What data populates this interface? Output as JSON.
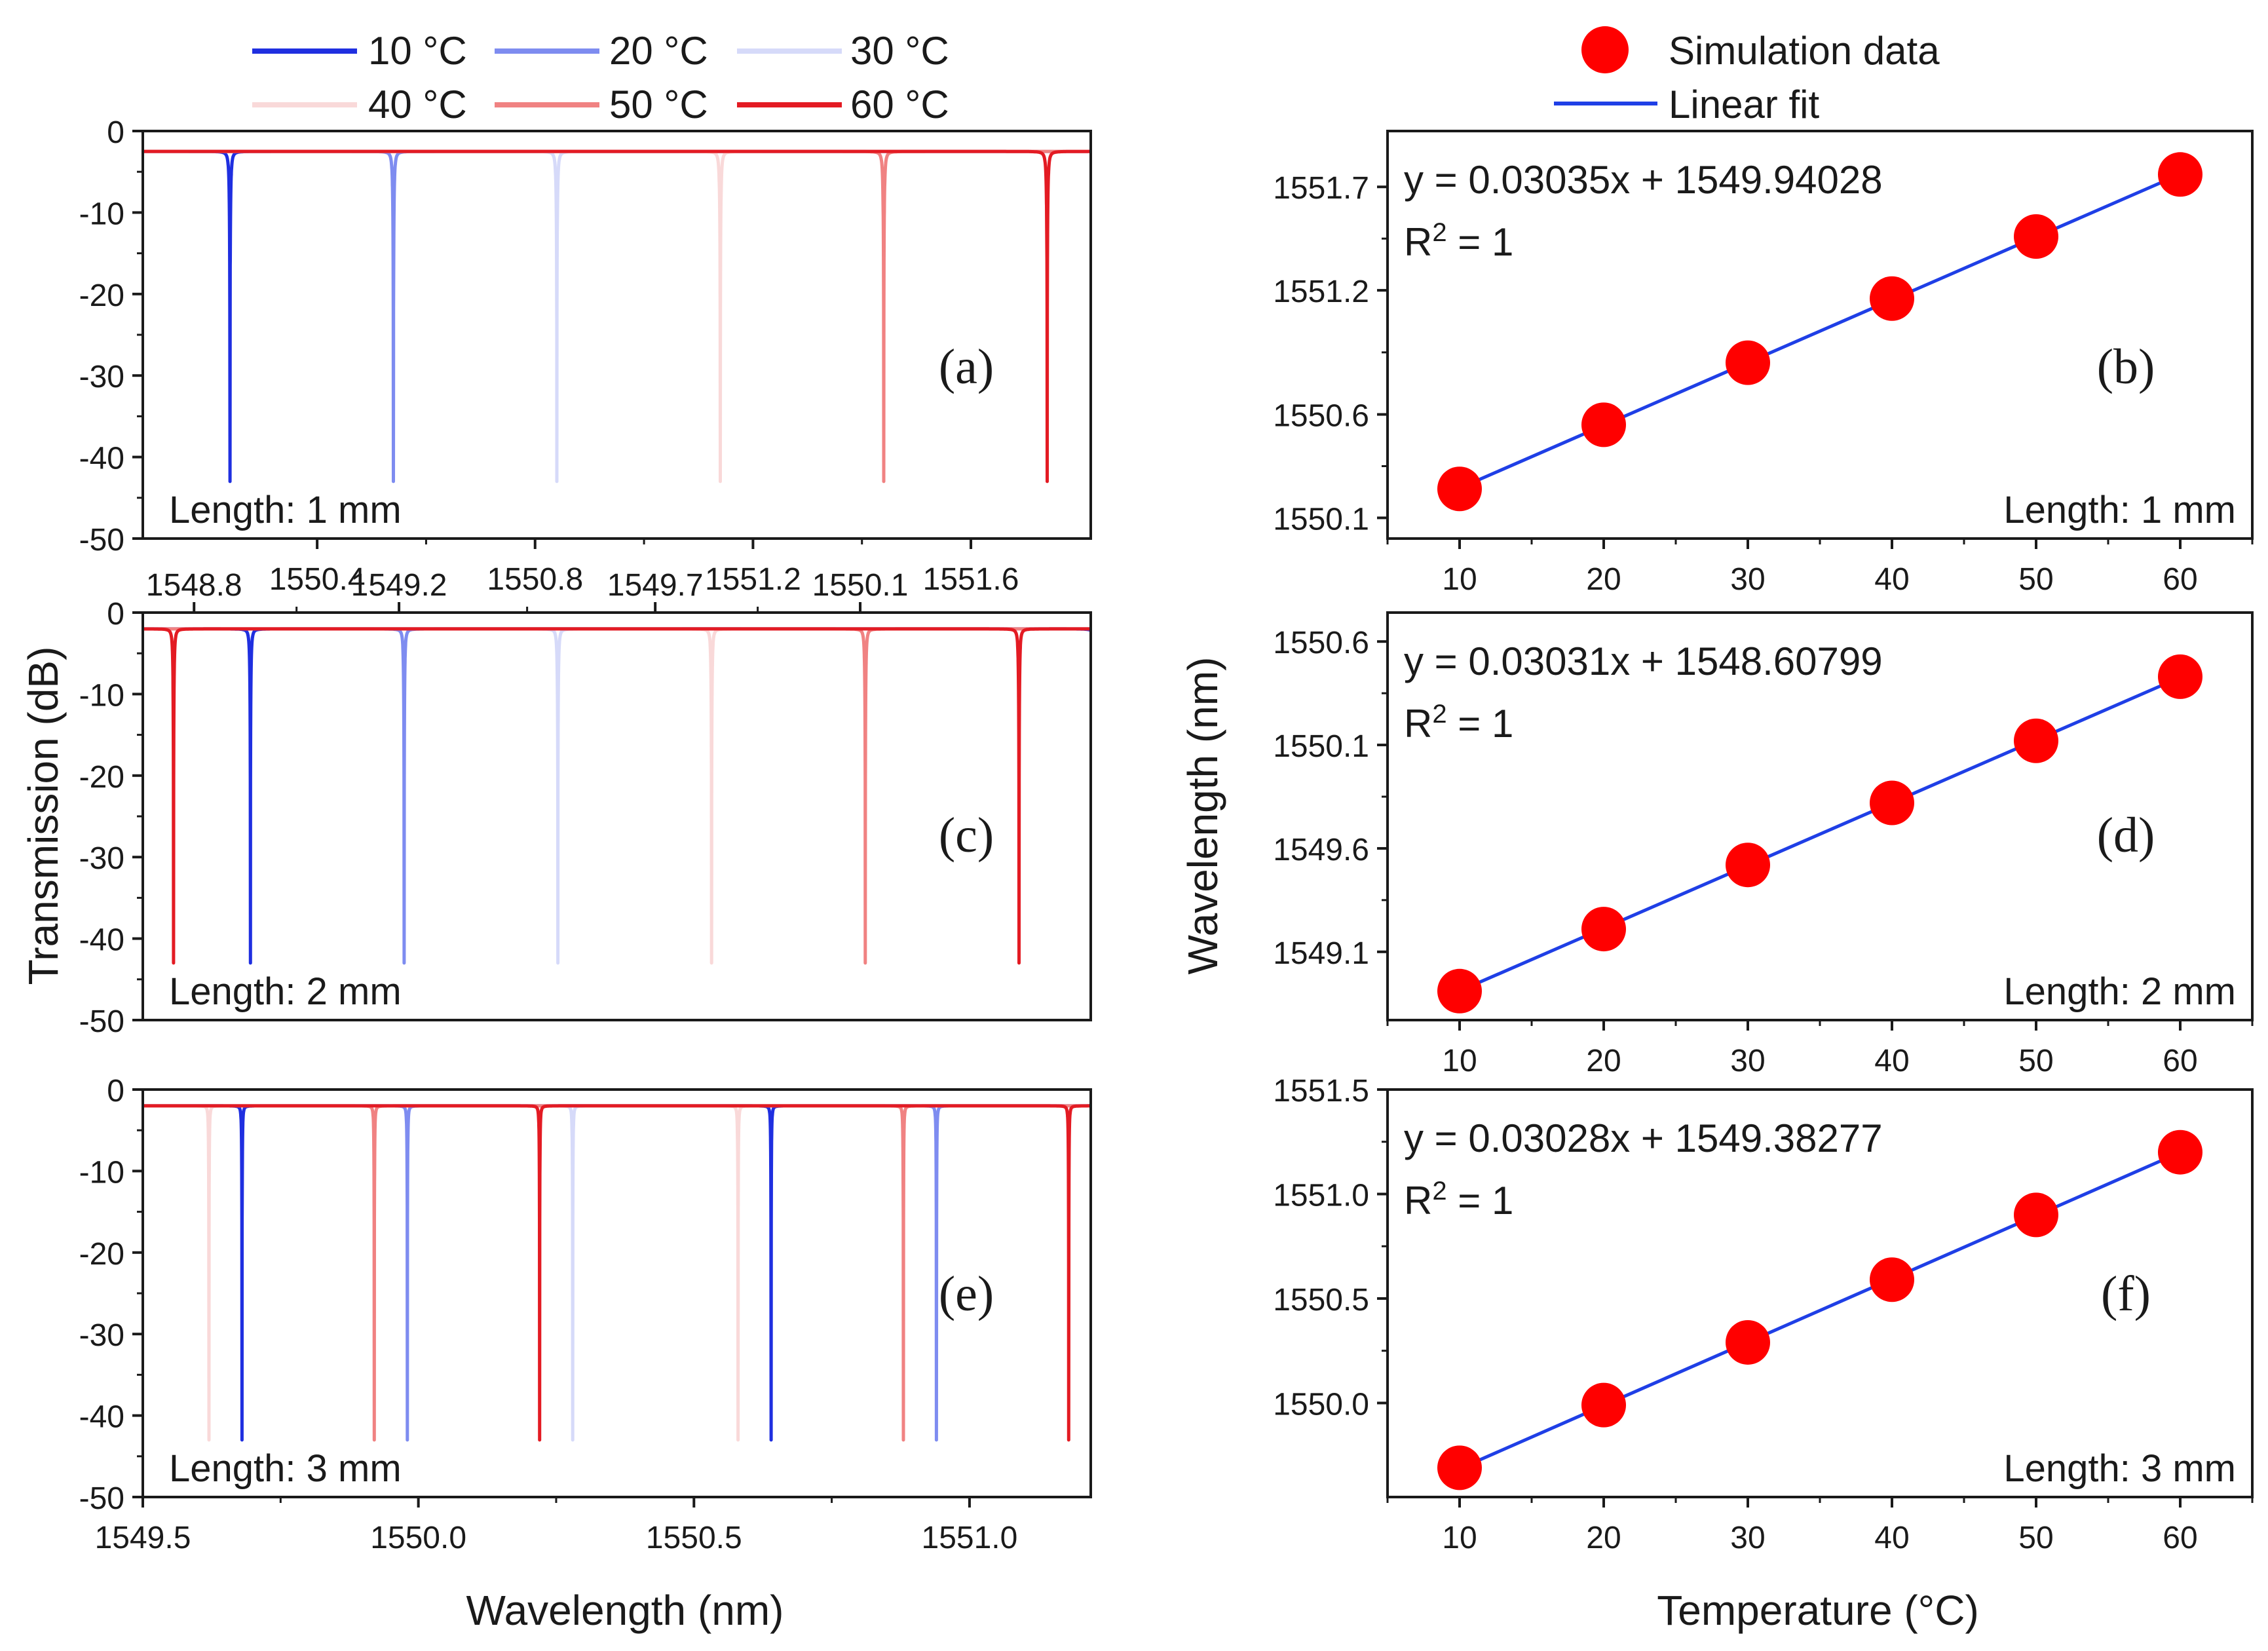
{
  "colors": {
    "c10": "#1f2fe0",
    "c20": "#7e8cf0",
    "c30": "#d6daf9",
    "c40": "#f9d9d9",
    "c50": "#f08282",
    "c60": "#e31b23",
    "marker": "#ff0000",
    "fit": "#1f3fe6",
    "axis": "#1a1a1a"
  },
  "legend_left": {
    "entries": [
      {
        "label": "10 °C",
        "color_key": "c10"
      },
      {
        "label": "20 °C",
        "color_key": "c20"
      },
      {
        "label": "30 °C",
        "color_key": "c30"
      },
      {
        "label": "40 °C",
        "color_key": "c40"
      },
      {
        "label": "50 °C",
        "color_key": "c50"
      },
      {
        "label": "60 °C",
        "color_key": "c60"
      }
    ]
  },
  "legend_right": {
    "marker_label": "Simulation data",
    "line_label": "Linear fit"
  },
  "left_ylabel": "Transmission (dB)",
  "left_xlabel": "Wavelength (nm)",
  "right_ylabel": "Wavelength (nm)",
  "right_xlabel": "Temperature (°C)",
  "chart_data": [
    {
      "panel": "(a)",
      "type": "line",
      "length_label": "Length: 1 mm",
      "xlim": [
        1550.08,
        1551.82
      ],
      "ylim": [
        -50,
        0
      ],
      "xticks": [
        1550.4,
        1550.8,
        1551.2,
        1551.6
      ],
      "xtick_labels": [
        "1550.4",
        "1550.8",
        "1551.2",
        "1551.6"
      ],
      "yticks": [
        0,
        -10,
        -20,
        -30,
        -40,
        -50
      ],
      "ytick_labels": [
        "0",
        "-10",
        "-20",
        "-30",
        "-40",
        "-50"
      ],
      "fsr": 1.8,
      "base_db": -2.5,
      "min_db": -43,
      "series": [
        {
          "name": "10 °C",
          "resonance": 1550.24
        },
        {
          "name": "20 °C",
          "resonance": 1550.54
        },
        {
          "name": "30 °C",
          "resonance": 1550.84
        },
        {
          "name": "40 °C",
          "resonance": 1551.14
        },
        {
          "name": "50 °C",
          "resonance": 1551.44
        },
        {
          "name": "60 °C",
          "resonance": 1551.74
        }
      ]
    },
    {
      "panel": "(c)",
      "type": "line",
      "length_label": "Length: 2 mm",
      "xlim": [
        1548.7,
        1550.55
      ],
      "ylim": [
        -50,
        0
      ],
      "xticks": [
        1548.8,
        1549.2,
        1549.7,
        1550.1
      ],
      "xtick_labels": [
        "1548.8",
        "1549.2",
        "1549.7",
        "1550.1"
      ],
      "yticks": [
        0,
        -10,
        -20,
        -30,
        -40,
        -50
      ],
      "ytick_labels": [
        "0",
        "-10",
        "-20",
        "-30",
        "-40",
        "-50"
      ],
      "fsr": 1.65,
      "base_db": -2,
      "min_db": -43,
      "series": [
        {
          "name": "10 °C",
          "resonance": 1548.91
        },
        {
          "name": "20 °C",
          "resonance": 1549.21
        },
        {
          "name": "30 °C",
          "resonance": 1549.51
        },
        {
          "name": "40 °C",
          "resonance": 1549.81
        },
        {
          "name": "50 °C",
          "resonance": 1550.11
        },
        {
          "name": "60 °C",
          "resonance": 1550.41
        }
      ]
    },
    {
      "panel": "(e)",
      "type": "line",
      "length_label": "Length: 3 mm",
      "xlim": [
        1549.5,
        1551.22
      ],
      "ylim": [
        -50,
        0
      ],
      "xticks": [
        1549.5,
        1550.0,
        1550.5,
        1551.0
      ],
      "xtick_labels": [
        "1549.5",
        "1550.0",
        "1550.5",
        "1551.0"
      ],
      "yticks": [
        0,
        -10,
        -20,
        -30,
        -40,
        -50
      ],
      "ytick_labels": [
        "0",
        "-10",
        "-20",
        "-30",
        "-40",
        "-50"
      ],
      "fsr": 0.96,
      "base_db": -2,
      "min_db": -43,
      "series": [
        {
          "name": "10 °C",
          "resonance": 1549.68
        },
        {
          "name": "20 °C",
          "resonance": 1549.98
        },
        {
          "name": "30 °C",
          "resonance": 1550.28
        },
        {
          "name": "40 °C",
          "resonance": 1550.58
        },
        {
          "name": "50 °C",
          "resonance": 1550.88
        },
        {
          "name": "60 °C",
          "resonance": 1551.18
        }
      ]
    },
    {
      "panel": "(b)",
      "type": "scatter",
      "length_label": "Length: 1 mm",
      "equation": "y = 0.03035x + 1549.94028",
      "r2_main": "R",
      "r2_sup": "2",
      "r2_rest": " = 1",
      "slope": 0.03035,
      "intercept": 1549.94028,
      "x": [
        10,
        20,
        30,
        40,
        50,
        60
      ],
      "y": [
        1550.24,
        1550.55,
        1550.85,
        1551.16,
        1551.46,
        1551.76
      ],
      "xlim": [
        5,
        65
      ],
      "ylim": [
        1550.0,
        1551.97
      ],
      "xticks": [
        10,
        20,
        30,
        40,
        50,
        60
      ],
      "xtick_labels": [
        "10",
        "20",
        "30",
        "40",
        "50",
        "60"
      ],
      "yticks": [
        1550.1,
        1550.6,
        1551.2,
        1551.7
      ],
      "ytick_labels": [
        "1550.1",
        "1550.6",
        "1551.2",
        "1551.7"
      ]
    },
    {
      "panel": "(d)",
      "type": "scatter",
      "length_label": "Length: 2 mm",
      "equation": "y = 0.03031x + 1548.60799",
      "r2_main": "R",
      "r2_sup": "2",
      "r2_rest": " = 1",
      "slope": 0.03031,
      "intercept": 1548.60799,
      "x": [
        10,
        20,
        30,
        40,
        50,
        60
      ],
      "y": [
        1548.91,
        1549.21,
        1549.52,
        1549.82,
        1550.12,
        1550.43
      ],
      "xlim": [
        5,
        65
      ],
      "ylim": [
        1548.77,
        1550.74
      ],
      "xticks": [
        10,
        20,
        30,
        40,
        50,
        60
      ],
      "xtick_labels": [
        "10",
        "20",
        "30",
        "40",
        "50",
        "60"
      ],
      "yticks": [
        1549.1,
        1549.6,
        1550.1,
        1550.6
      ],
      "ytick_labels": [
        "1549.1",
        "1549.6",
        "1550.1",
        "1550.6"
      ]
    },
    {
      "panel": "(f)",
      "type": "scatter",
      "length_label": "Length: 3 mm",
      "equation": "y = 0.03028x + 1549.38277",
      "r2_main": "R",
      "r2_sup": "2",
      "r2_rest": " = 1",
      "slope": 0.03028,
      "intercept": 1549.38277,
      "x": [
        10,
        20,
        30,
        40,
        50,
        60
      ],
      "y": [
        1549.69,
        1549.99,
        1550.29,
        1550.59,
        1550.9,
        1551.2
      ],
      "xlim": [
        5,
        65
      ],
      "ylim": [
        1549.55,
        1551.5
      ],
      "xticks": [
        10,
        20,
        30,
        40,
        50,
        60
      ],
      "xtick_labels": [
        "10",
        "20",
        "30",
        "40",
        "50",
        "60"
      ],
      "yticks": [
        1550.0,
        1550.5,
        1551.0,
        1551.5
      ],
      "ytick_labels": [
        "1550.0",
        "1550.5",
        "1551.0",
        "1551.5"
      ]
    }
  ]
}
